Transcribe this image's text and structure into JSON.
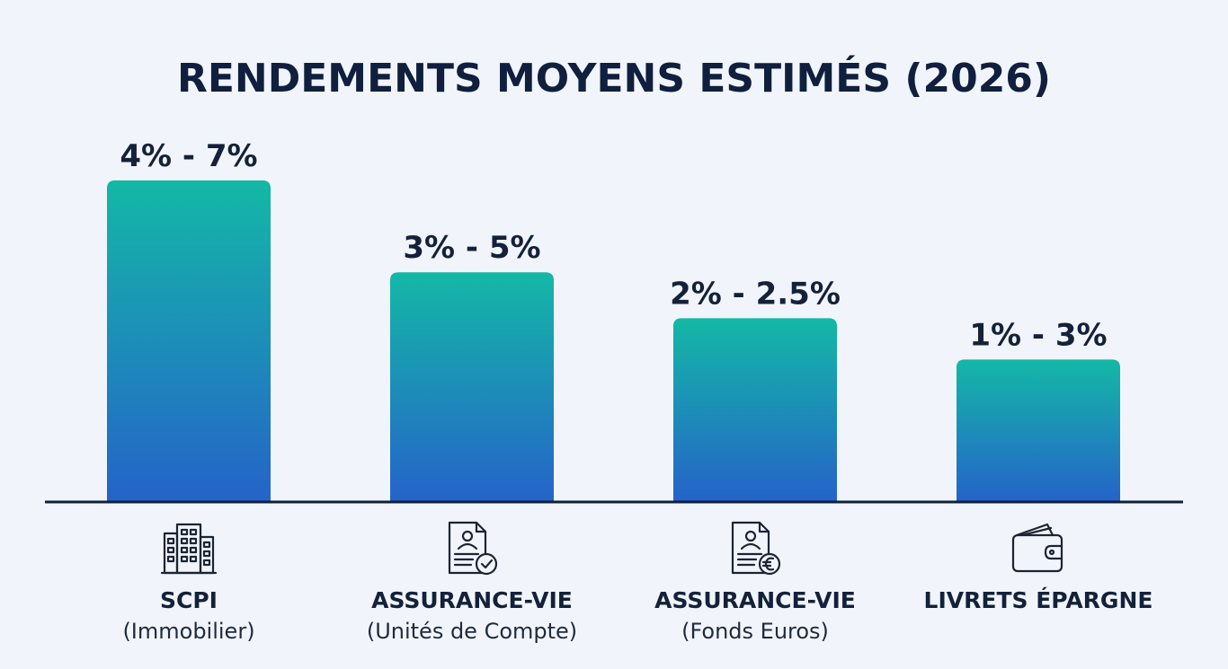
{
  "chart_data": {
    "type": "bar",
    "title": "RENDEMENTS MOYENS ESTIMÉS (2026)",
    "xlabel": "",
    "ylabel": "",
    "ylim": [
      0,
      7.8
    ],
    "grid": false,
    "legend": "none",
    "unit": "%",
    "categories": [
      {
        "name": "SCPI",
        "sub": "(Immobilier)",
        "icon": "buildings-icon"
      },
      {
        "name": "ASSURANCE-VIE",
        "sub": "(Unités de Compte)",
        "icon": "document-check-icon"
      },
      {
        "name": "ASSURANCE-VIE",
        "sub": "(Fonds Euros)",
        "icon": "document-euro-icon"
      },
      {
        "name": "LIVRETS ÉPARGNE",
        "sub": "",
        "icon": "wallet-icon"
      }
    ],
    "series": [
      {
        "values": [
          7,
          5,
          2.5,
          3
        ],
        "ranges": [
          [
            4,
            7
          ],
          [
            3,
            5
          ],
          [
            2,
            2.5
          ],
          [
            1,
            3
          ]
        ],
        "labels": [
          "4% - 7%",
          "3% - 5%",
          "2% - 2.5%",
          "1% - 3%"
        ]
      }
    ],
    "bar_heights_visual": [
      7,
      5,
      4,
      3.1
    ],
    "colors": {
      "bar_top": "#14b8a6",
      "bar_bottom": "#2563c9",
      "text": "#14213a",
      "baseline": "#0f1f3d",
      "background": "#f1f5fb"
    }
  }
}
